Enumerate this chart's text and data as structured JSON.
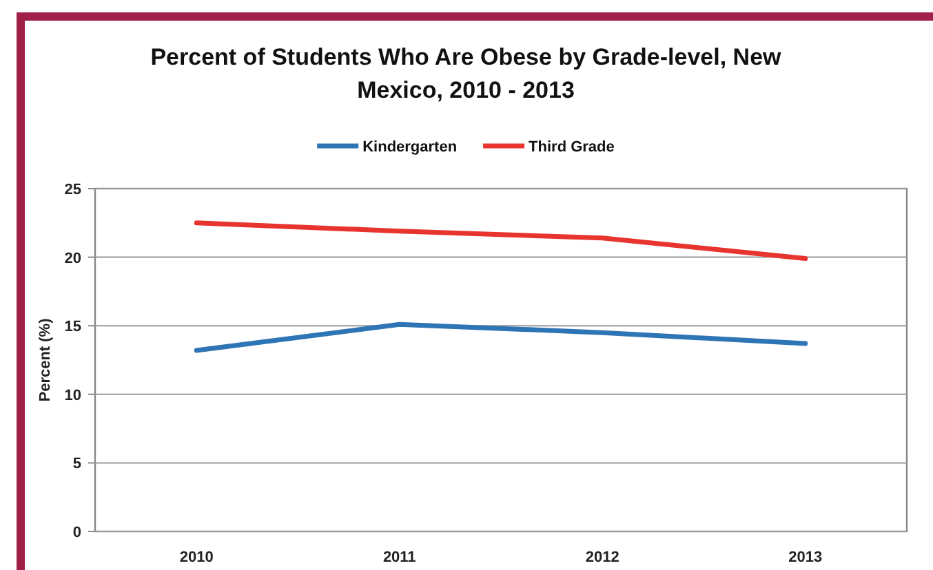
{
  "chart_data": {
    "type": "line",
    "title": "Percent of Students Who Are Obese by Grade-level, New Mexico, 2010 - 2013",
    "ylabel": "Percent (%)",
    "categories": [
      "2010",
      "2011",
      "2012",
      "2013"
    ],
    "series": [
      {
        "name": "Kindergarten",
        "color": "#2e75b6",
        "values": [
          13.2,
          15.1,
          14.5,
          13.7
        ]
      },
      {
        "name": "Third Grade",
        "color": "#e8342e",
        "values": [
          22.5,
          21.9,
          21.4,
          19.9
        ]
      }
    ],
    "ylim": [
      0,
      25
    ],
    "yticks": [
      0,
      5,
      10,
      15,
      20,
      25
    ],
    "grid": "y",
    "legend": "top",
    "marker": "none",
    "line_style": "solid"
  }
}
